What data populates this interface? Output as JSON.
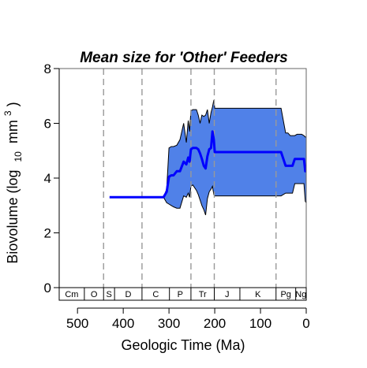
{
  "chart_data": {
    "type": "area",
    "title": "Mean size for 'Other' Feeders",
    "xlabel": "Geologic Time (Ma)",
    "ylabel": {
      "prefix": "Biovolume (log",
      "sub": "10",
      "unit": "mm",
      "sup": "3",
      "suffix": ")"
    },
    "xlim": [
      540,
      0
    ],
    "ylim": [
      0,
      8
    ],
    "x_ticks": [
      500,
      400,
      300,
      200,
      100,
      0
    ],
    "y_ticks": [
      0,
      2,
      4,
      6,
      8
    ],
    "boundaries": [
      443,
      359,
      252,
      201,
      66
    ],
    "colors": {
      "band": "#5081e8",
      "line": "#0000ff",
      "boundary": "#999999"
    },
    "periods": [
      {
        "label": "Cm",
        "start": 541,
        "end": 485
      },
      {
        "label": "O",
        "start": 485,
        "end": 443
      },
      {
        "label": "S",
        "start": 443,
        "end": 419
      },
      {
        "label": "D",
        "start": 419,
        "end": 359
      },
      {
        "label": "C",
        "start": 359,
        "end": 299
      },
      {
        "label": "P",
        "start": 299,
        "end": 252
      },
      {
        "label": "Tr",
        "start": 252,
        "end": 201
      },
      {
        "label": "J",
        "start": 201,
        "end": 145
      },
      {
        "label": "K",
        "start": 145,
        "end": 66
      },
      {
        "label": "Pg",
        "start": 66,
        "end": 23
      },
      {
        "label": "Ng",
        "start": 23,
        "end": 0
      }
    ],
    "series": [
      {
        "type": "line",
        "x": [
          430,
          415,
          400,
          385,
          370,
          355,
          340,
          325,
          312,
          305,
          300,
          295,
          290,
          283,
          276,
          268,
          262,
          258,
          255,
          252,
          248,
          244,
          240,
          236,
          232,
          228,
          224,
          220,
          216,
          212,
          208,
          205,
          202,
          200,
          190,
          170,
          150,
          130,
          110,
          90,
          80,
          70,
          66,
          55,
          45,
          40,
          35,
          30,
          25,
          20,
          15,
          10,
          5,
          2,
          0
        ],
        "y": [
          3.3,
          3.3,
          3.3,
          3.3,
          3.3,
          3.3,
          3.3,
          3.3,
          3.3,
          3.5,
          4.05,
          4.1,
          4.1,
          4.25,
          4.25,
          4.6,
          4.5,
          4.75,
          4.6,
          5.05,
          5.1,
          5.1,
          5.1,
          5.05,
          4.9,
          4.7,
          4.45,
          4.35,
          4.8,
          5.05,
          5.1,
          5.7,
          5.4,
          4.95,
          4.95,
          4.95,
          4.95,
          4.95,
          4.95,
          4.95,
          4.95,
          4.95,
          4.95,
          4.95,
          4.45,
          4.45,
          4.45,
          4.45,
          4.7,
          4.7,
          4.7,
          4.7,
          4.7,
          4.25,
          4.25
        ]
      },
      {
        "type": "band",
        "x": [
          312,
          305,
          300,
          295,
          290,
          283,
          276,
          268,
          262,
          258,
          255,
          252,
          248,
          244,
          240,
          236,
          232,
          228,
          224,
          220,
          216,
          212,
          208,
          205,
          202,
          200,
          190,
          170,
          150,
          130,
          110,
          90,
          80,
          70,
          66,
          55,
          45,
          40,
          35,
          30,
          25,
          20,
          15,
          10,
          5,
          2,
          0
        ],
        "upper": [
          3.3,
          3.6,
          5.1,
          5.15,
          5.15,
          5.2,
          5.4,
          6.0,
          5.3,
          6.1,
          5.7,
          6.45,
          6.5,
          6.5,
          6.5,
          6.3,
          6.0,
          6.3,
          6.25,
          6.3,
          6.5,
          6.0,
          6.4,
          6.6,
          6.85,
          6.55,
          6.55,
          6.55,
          6.55,
          6.55,
          6.55,
          6.55,
          6.55,
          6.55,
          6.55,
          6.55,
          5.65,
          5.65,
          5.55,
          5.55,
          5.55,
          5.6,
          5.6,
          5.6,
          5.55,
          5.5,
          5.5
        ],
        "lower": [
          3.3,
          3.1,
          3.05,
          3.0,
          2.95,
          2.9,
          2.9,
          3.35,
          3.3,
          3.45,
          3.3,
          3.7,
          3.75,
          3.65,
          3.55,
          3.4,
          3.2,
          3.0,
          2.85,
          2.65,
          3.25,
          3.5,
          3.6,
          3.7,
          3.4,
          3.35,
          3.35,
          3.35,
          3.35,
          3.35,
          3.35,
          3.35,
          3.35,
          3.35,
          3.35,
          3.35,
          3.45,
          3.45,
          3.45,
          3.45,
          3.8,
          3.8,
          3.8,
          3.8,
          3.8,
          3.15,
          3.1
        ]
      }
    ]
  }
}
